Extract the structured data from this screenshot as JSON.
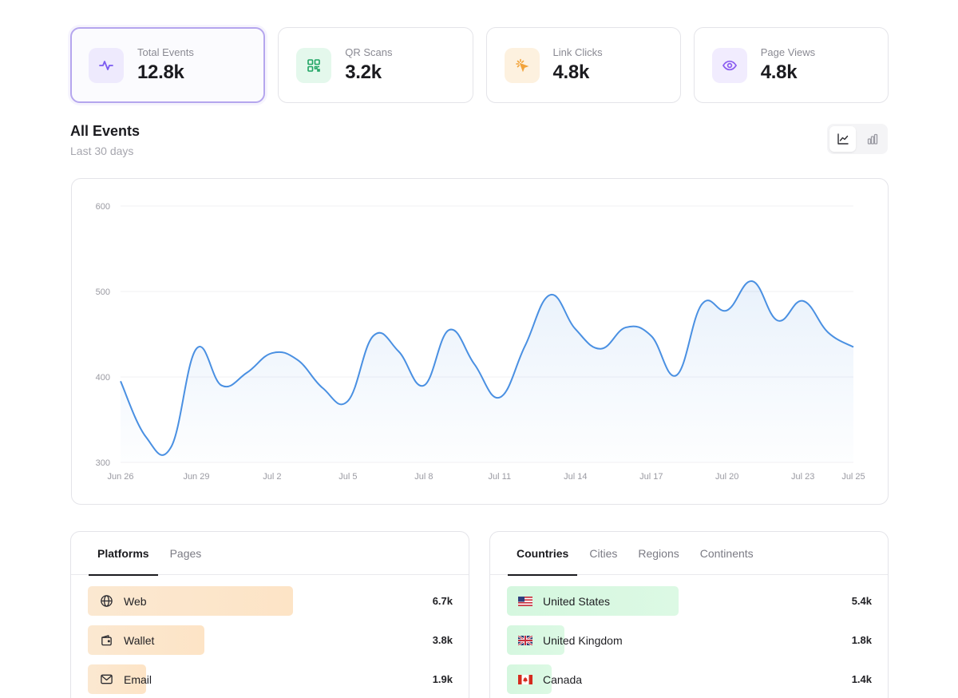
{
  "stats": [
    {
      "label": "Total Events",
      "value": "12.8k",
      "icon": "activity-pulse-icon",
      "color": "#7a5af0",
      "bg": "#eeeafd"
    },
    {
      "label": "QR Scans",
      "value": "3.2k",
      "icon": "qr-code-icon",
      "color": "#1fa463",
      "bg": "#e4f8ec"
    },
    {
      "label": "Link Clicks",
      "value": "4.8k",
      "icon": "cursor-click-icon",
      "color": "#f2a33a",
      "bg": "#fdf1df"
    },
    {
      "label": "Page Views",
      "value": "4.8k",
      "icon": "eye-icon",
      "color": "#8b5cf0",
      "bg": "#f1ecfe"
    }
  ],
  "section": {
    "title": "All Events",
    "subtitle": "Last 30 days"
  },
  "chart_toggle": {
    "options": [
      "line-chart-icon",
      "bar-chart-icon"
    ],
    "selected": "line"
  },
  "chart_data": {
    "type": "area",
    "x": [
      "Jun 26",
      "Jun 27",
      "Jun 28",
      "Jun 29",
      "Jun 30",
      "Jul 1",
      "Jul 2",
      "Jul 3",
      "Jul 4",
      "Jul 5",
      "Jul 6",
      "Jul 7",
      "Jul 8",
      "Jul 9",
      "Jul 10",
      "Jul 11",
      "Jul 12",
      "Jul 13",
      "Jul 14",
      "Jul 15",
      "Jul 16",
      "Jul 17",
      "Jul 18",
      "Jul 19",
      "Jul 20",
      "Jul 21",
      "Jul 22",
      "Jul 23",
      "Jul 24",
      "Jul 25"
    ],
    "values": [
      395,
      330,
      318,
      433,
      390,
      405,
      428,
      420,
      387,
      372,
      448,
      430,
      390,
      455,
      415,
      376,
      436,
      496,
      456,
      433,
      458,
      448,
      402,
      485,
      478,
      512,
      466,
      489,
      452,
      435
    ],
    "xticks": [
      "Jun 26",
      "Jun 29",
      "Jul 2",
      "Jul 5",
      "Jul 8",
      "Jul 11",
      "Jul 14",
      "Jul 17",
      "Jul 20",
      "Jul 23",
      "Jul 25"
    ],
    "yticks": [
      300,
      400,
      500,
      600
    ],
    "ylim": [
      300,
      600
    ],
    "color": "#4a90e2",
    "grid": true
  },
  "platforms": {
    "tabs": [
      "Platforms",
      "Pages"
    ],
    "active": 0,
    "max": 6.7,
    "rows": [
      {
        "label": "Web",
        "value": "6.7k",
        "amount": 6.7,
        "icon": "globe-icon"
      },
      {
        "label": "Wallet",
        "value": "3.8k",
        "amount": 3.8,
        "icon": "wallet-icon"
      },
      {
        "label": "Email",
        "value": "1.9k",
        "amount": 1.9,
        "icon": "mail-icon"
      }
    ]
  },
  "locations": {
    "tabs": [
      "Countries",
      "Cities",
      "Regions",
      "Continents"
    ],
    "active": 0,
    "max": 5.4,
    "rows": [
      {
        "label": "United States",
        "value": "5.4k",
        "amount": 5.4,
        "icon": "us-flag-icon"
      },
      {
        "label": "United Kingdom",
        "value": "1.8k",
        "amount": 1.8,
        "icon": "uk-flag-icon"
      },
      {
        "label": "Canada",
        "value": "1.4k",
        "amount": 1.4,
        "icon": "canada-flag-icon"
      }
    ]
  }
}
